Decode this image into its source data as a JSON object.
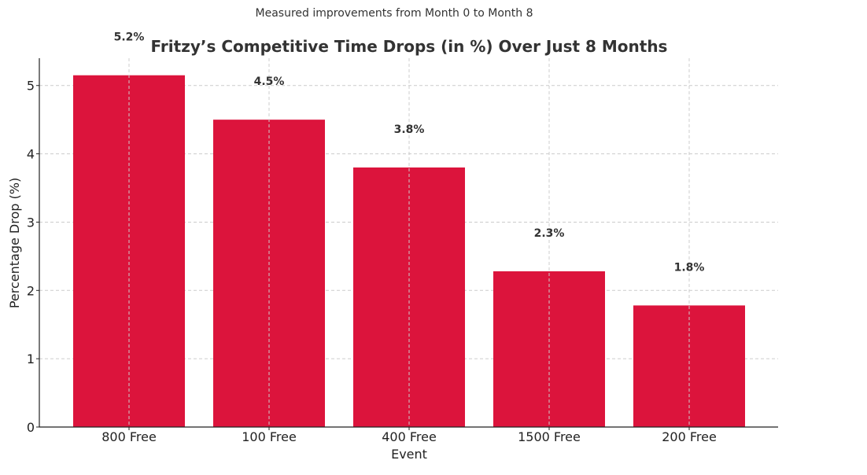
{
  "chart_data": {
    "type": "bar",
    "subtitle": "Measured improvements from Month 0 to Month 8",
    "title": "Fritzy’s Competitive Time Drops (in %) Over Just 8 Months",
    "xlabel": "Event",
    "ylabel": "Percentage Drop (%)",
    "categories": [
      "800 Free",
      "100 Free",
      "400 Free",
      "1500 Free",
      "200 Free"
    ],
    "values": [
      5.15,
      4.5,
      3.8,
      2.28,
      1.78
    ],
    "data_labels": [
      "5.2%",
      "4.5%",
      "3.8%",
      "2.3%",
      "1.8%"
    ],
    "ylim": [
      0,
      5.4
    ],
    "yticks": [
      0,
      1,
      2,
      3,
      4,
      5
    ],
    "grid": true,
    "bar_color": "#dc143c"
  }
}
